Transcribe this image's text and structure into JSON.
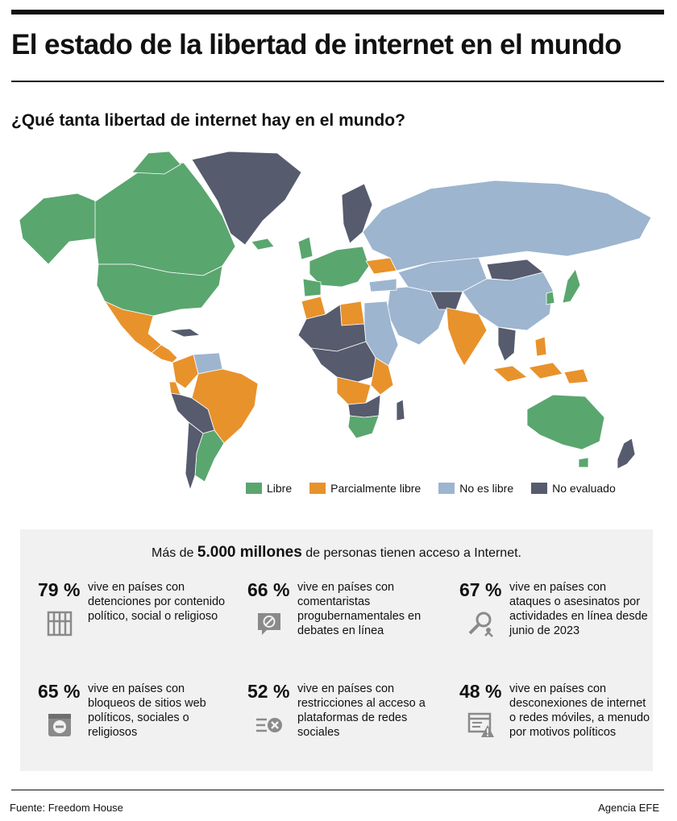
{
  "header": {
    "title": "El estado de la libertad de internet en el mundo"
  },
  "chart_data": {
    "type": "choropleth-map",
    "title": "¿Qué tanta libertad de internet hay en el mundo?",
    "categories": [
      {
        "label": "Libre",
        "color": "#5aa66f"
      },
      {
        "label": "Parcialmente libre",
        "color": "#e8922b"
      },
      {
        "label": "No es libre",
        "color": "#9db5cf"
      },
      {
        "label": "No evaluado",
        "color": "#565b6e"
      }
    ],
    "legend_position": "bottom-right",
    "regions": [
      {
        "region": "Canada / Northern America",
        "status": "Libre"
      },
      {
        "region": "United States",
        "status": "Libre"
      },
      {
        "region": "Greenland",
        "status": "No evaluado"
      },
      {
        "region": "Mexico",
        "status": "Parcialmente libre"
      },
      {
        "region": "Central America",
        "status": "Parcialmente libre"
      },
      {
        "region": "Colombia",
        "status": "Parcialmente libre"
      },
      {
        "region": "Venezuela",
        "status": "No es libre"
      },
      {
        "region": "Brazil",
        "status": "Parcialmente libre"
      },
      {
        "region": "Ecuador",
        "status": "Parcialmente libre"
      },
      {
        "region": "Peru / Bolivia",
        "status": "No evaluado"
      },
      {
        "region": "Argentina",
        "status": "Libre"
      },
      {
        "region": "Chile",
        "status": "No evaluado"
      },
      {
        "region": "Western Europe",
        "status": "Libre"
      },
      {
        "region": "Iceland",
        "status": "Libre"
      },
      {
        "region": "Scandinavia",
        "status": "No evaluado"
      },
      {
        "region": "Ukraine",
        "status": "Parcialmente libre"
      },
      {
        "region": "Russia",
        "status": "No es libre"
      },
      {
        "region": "Central Asia",
        "status": "No es libre"
      },
      {
        "region": "China",
        "status": "No es libre"
      },
      {
        "region": "Mongolia",
        "status": "No evaluado"
      },
      {
        "region": "India",
        "status": "Parcialmente libre"
      },
      {
        "region": "Middle East",
        "status": "No es libre"
      },
      {
        "region": "North Africa (Morocco, Libya, Tunisia)",
        "status": "Parcialmente libre"
      },
      {
        "region": "Egypt / Sudan / Ethiopia",
        "status": "No es libre"
      },
      {
        "region": "Sub-Saharan Africa (mixed)",
        "status": "No evaluado"
      },
      {
        "region": "Kenya / Uganda / Zambia / Angola",
        "status": "Parcialmente libre"
      },
      {
        "region": "South Africa",
        "status": "Libre"
      },
      {
        "region": "Southeast Asia / Indonesia / Philippines",
        "status": "Parcialmente libre"
      },
      {
        "region": "Japan",
        "status": "Libre"
      },
      {
        "region": "Australia",
        "status": "Libre"
      },
      {
        "region": "New Zealand",
        "status": "No evaluado"
      },
      {
        "region": "Papua New Guinea",
        "status": "Parcialmente libre"
      }
    ]
  },
  "stats": {
    "intro_before": "Más de ",
    "intro_highlight": "5.000 millones",
    "intro_after": " de personas tienen acceso a Internet.",
    "items": [
      {
        "percent": "79 %",
        "value": 79,
        "text": "vive en países con detenciones por contenido político, social o religioso",
        "icon": "prison-bars-icon"
      },
      {
        "percent": "66 %",
        "value": 66,
        "text": "vive en países con comentaristas progubernamentales en debates en línea",
        "icon": "speech-blocked-icon"
      },
      {
        "percent": "67 %",
        "value": 67,
        "text": "vive en países con ataques o asesinatos por actividades en línea desde junio de 2023",
        "icon": "investigation-icon"
      },
      {
        "percent": "65 %",
        "value": 65,
        "text": "vive en países con bloqueos de sitios web políticos, sociales o religiosos",
        "icon": "blocked-website-icon"
      },
      {
        "percent": "52 %",
        "value": 52,
        "text": "vive en países con restricciones al acceso a plataformas de redes sociales",
        "icon": "restricted-social-icon"
      },
      {
        "percent": "48 %",
        "value": 48,
        "text": "vive en países con desconexiones de internet o redes móviles, a menudo por motivos políticos",
        "icon": "network-warning-icon"
      }
    ]
  },
  "footer": {
    "source": "Fuente: Freedom House",
    "agency": "Agencia EFE"
  }
}
